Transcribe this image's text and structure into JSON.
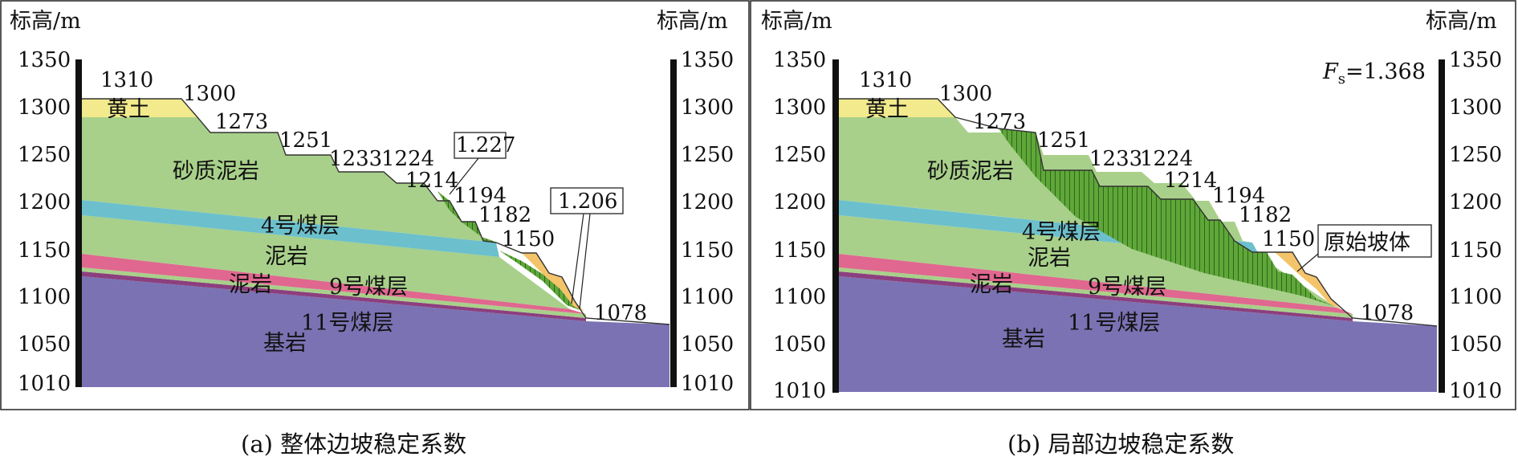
{
  "panel_a": {
    "axis_label_left": "标高/m",
    "axis_label_right": "标高/m",
    "ticks": [
      "1350",
      "1300",
      "1250",
      "1200",
      "1150",
      "1100",
      "1050",
      "1010"
    ],
    "elevations": [
      "1310",
      "1300",
      "1273",
      "1251",
      "1233",
      "1224",
      "1214",
      "1194",
      "1182",
      "1150",
      "1078"
    ],
    "layers": {
      "loess": "黄土",
      "sandy_mudstone": "砂质泥岩",
      "coal4": "4号煤层",
      "mudstone1": "泥岩",
      "mudstone2": "泥岩",
      "coal9": "9号煤层",
      "coal11": "11号煤层",
      "bedrock": "基岩"
    },
    "fs_box_1": "1.227",
    "fs_box_2": "1.206",
    "caption": "(a) 整体边坡稳定系数"
  },
  "panel_b": {
    "axis_label_left": "标高/m",
    "axis_label_right": "标高/m",
    "ticks": [
      "1350",
      "1300",
      "1250",
      "1200",
      "1150",
      "1100",
      "1050",
      "1010"
    ],
    "elevations": [
      "1310",
      "1300",
      "1273",
      "1251",
      "1233",
      "1224",
      "1214",
      "1194",
      "1182",
      "1150",
      "1078"
    ],
    "layers": {
      "loess": "黄土",
      "sandy_mudstone": "砂质泥岩",
      "coal4": "4号煤层",
      "mudstone1": "泥岩",
      "mudstone2": "泥岩",
      "coal9": "9号煤层",
      "coal11": "11号煤层",
      "bedrock": "基岩"
    },
    "fs_prefix": "F",
    "fs_sub": "s",
    "fs_value": "=1.368",
    "slope_box": "原始坡体",
    "caption": "(b) 局部边坡稳定系数"
  },
  "colors": {
    "loess": "#f2ea8c",
    "sandy_mudstone": "#a8d08a",
    "coal": "#6cc0cd",
    "mudstone_pink": "#e0678f",
    "coal11": "#8c3f7e",
    "bedrock": "#7b72b3",
    "slide_green": "#5ea738",
    "fill_orange": "#f4c46a"
  }
}
